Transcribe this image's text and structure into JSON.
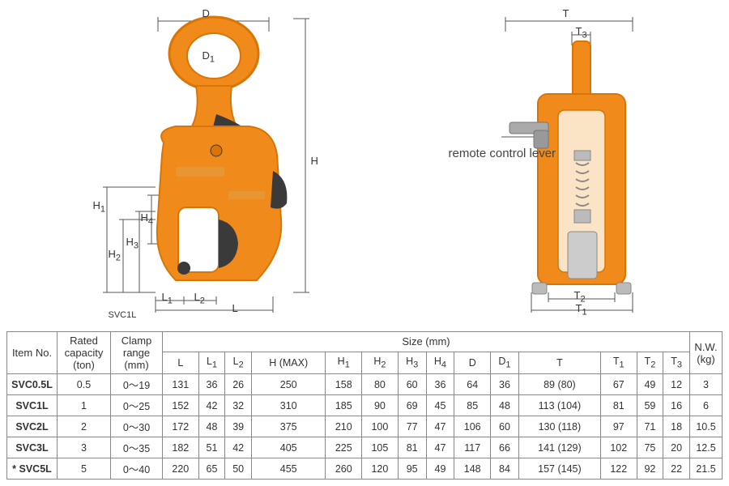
{
  "diagram": {
    "front_label": "SVC1L",
    "side_annotation": "remote control lever",
    "dims_front": [
      "D",
      "D1",
      "H",
      "H1",
      "H2",
      "H3",
      "H4",
      "L",
      "L1",
      "L2"
    ],
    "dims_side": [
      "T",
      "T1",
      "T2",
      "T3"
    ],
    "clamp_color": "#f08a1a",
    "accent_color": "#d97406",
    "dark_color": "#3a3a3a",
    "dimline_color": "#555555",
    "text_color": "#333333"
  },
  "table": {
    "headers": {
      "item": "Item No.",
      "rated": "Rated capacity (ton)",
      "clamp": "Clamp range (mm)",
      "size": "Size (mm)",
      "nw": "N.W. (kg)"
    },
    "dim_headers": [
      "L",
      "L1",
      "L2",
      "H (MAX)",
      "H1",
      "H2",
      "H3",
      "H4",
      "D",
      "D1",
      "T",
      "T1",
      "T2",
      "T3"
    ],
    "rows": [
      {
        "prefix": "",
        "item": "SVC0.5L",
        "rated": "0.5",
        "clamp": "0～19",
        "dims": [
          "131",
          "36",
          "26",
          "250",
          "158",
          "80",
          "60",
          "36",
          "64",
          "36",
          "89 (80)",
          "67",
          "49",
          "12"
        ],
        "nw": "3"
      },
      {
        "prefix": "",
        "item": "SVC1L",
        "rated": "1",
        "clamp": "0～25",
        "dims": [
          "152",
          "42",
          "32",
          "310",
          "185",
          "90",
          "69",
          "45",
          "85",
          "48",
          "113 (104)",
          "81",
          "59",
          "16"
        ],
        "nw": "6"
      },
      {
        "prefix": "",
        "item": "SVC2L",
        "rated": "2",
        "clamp": "0～30",
        "dims": [
          "172",
          "48",
          "39",
          "375",
          "210",
          "100",
          "77",
          "47",
          "106",
          "60",
          "130 (118)",
          "97",
          "71",
          "18"
        ],
        "nw": "10.5"
      },
      {
        "prefix": "",
        "item": "SVC3L",
        "rated": "3",
        "clamp": "0～35",
        "dims": [
          "182",
          "51",
          "42",
          "405",
          "225",
          "105",
          "81",
          "47",
          "117",
          "66",
          "141 (129)",
          "102",
          "75",
          "20"
        ],
        "nw": "12.5"
      },
      {
        "prefix": "*",
        "item": "SVC5L",
        "rated": "5",
        "clamp": "0～40",
        "dims": [
          "220",
          "65",
          "50",
          "455",
          "260",
          "120",
          "95",
          "49",
          "148",
          "84",
          "157 (145)",
          "122",
          "92",
          "22"
        ],
        "nw": "21.5"
      }
    ]
  }
}
